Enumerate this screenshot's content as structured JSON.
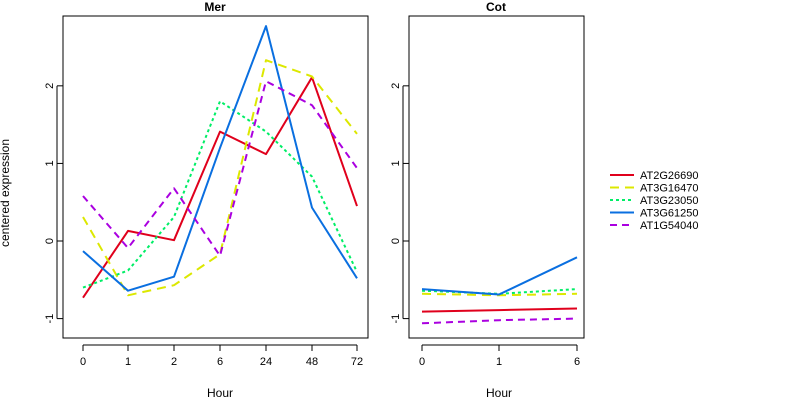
{
  "figure": {
    "ylabel": "centered expression"
  },
  "legend": {
    "entries": [
      {
        "name": "AT2G26690",
        "color": "#e0001c",
        "dash": "solid"
      },
      {
        "name": "AT3G16470",
        "color": "#dce800",
        "dash": "longdash"
      },
      {
        "name": "AT3G23050",
        "color": "#00ee66",
        "dash": "dotted"
      },
      {
        "name": "AT3G61250",
        "color": "#0a6fe0",
        "dash": "solid"
      },
      {
        "name": "AT1G54040",
        "color": "#aa00e0",
        "dash": "dashed"
      }
    ]
  },
  "chart_data": [
    {
      "type": "line",
      "title": "Mer",
      "xlabel": "Hour",
      "ylabel": "centered expression",
      "categories": [
        "0",
        "1",
        "2",
        "6",
        "24",
        "48",
        "72"
      ],
      "ylim": [
        -1.25,
        2.9
      ],
      "yticks": [
        -1,
        0,
        1,
        2
      ],
      "grid": false,
      "series": [
        {
          "name": "AT2G26690",
          "values": [
            -0.73,
            0.13,
            0.01,
            1.41,
            1.12,
            2.11,
            0.45
          ]
        },
        {
          "name": "AT3G16470",
          "values": [
            0.31,
            -0.7,
            -0.57,
            -0.17,
            2.33,
            2.12,
            1.38
          ]
        },
        {
          "name": "AT3G23050",
          "values": [
            -0.6,
            -0.38,
            0.31,
            1.8,
            1.41,
            0.83,
            -0.4
          ]
        },
        {
          "name": "AT3G61250",
          "values": [
            -0.13,
            -0.64,
            -0.46,
            1.2,
            2.77,
            0.43,
            -0.48
          ]
        },
        {
          "name": "AT1G54040",
          "values": [
            0.58,
            -0.09,
            0.68,
            -0.19,
            2.06,
            1.75,
            0.94
          ]
        }
      ]
    },
    {
      "type": "line",
      "title": "Cot",
      "xlabel": "Hour",
      "categories": [
        "0",
        "1",
        "6"
      ],
      "ylim": [
        -1.25,
        2.9
      ],
      "yticks": [
        -1,
        0,
        1,
        2
      ],
      "grid": false,
      "series": [
        {
          "name": "AT2G26690",
          "values": [
            -0.91,
            -0.89,
            -0.87
          ]
        },
        {
          "name": "AT3G16470",
          "values": [
            -0.68,
            -0.7,
            -0.68
          ]
        },
        {
          "name": "AT3G23050",
          "values": [
            -0.64,
            -0.68,
            -0.62
          ]
        },
        {
          "name": "AT3G61250",
          "values": [
            -0.62,
            -0.69,
            -0.21
          ]
        },
        {
          "name": "AT1G54040",
          "values": [
            -1.06,
            -1.02,
            -1.0
          ]
        }
      ]
    }
  ]
}
